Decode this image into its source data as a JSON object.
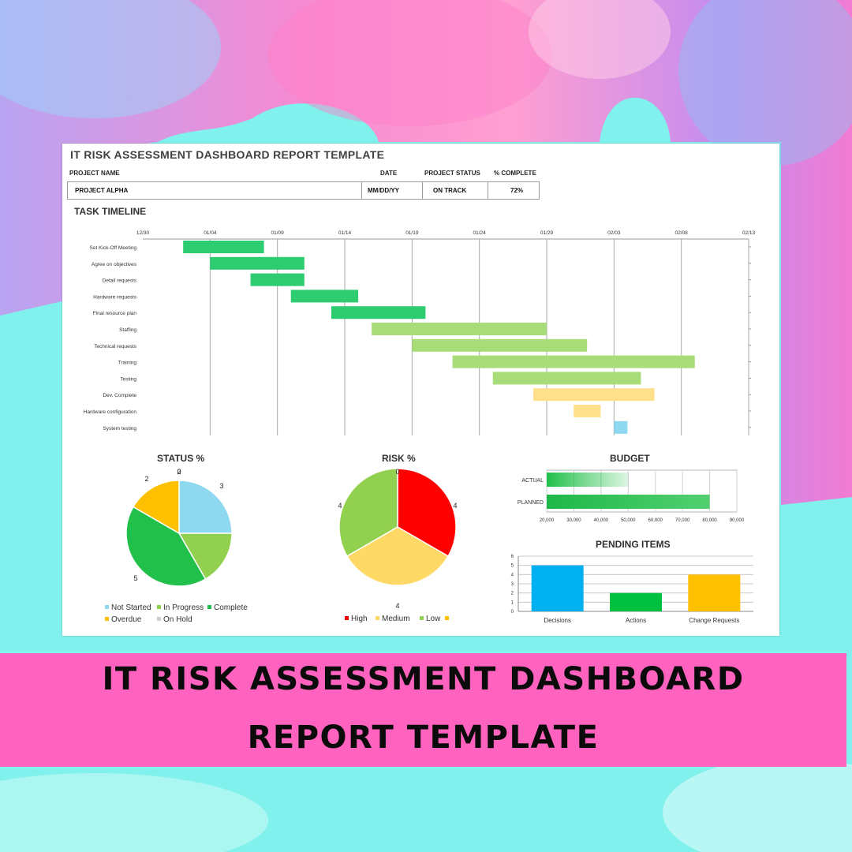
{
  "colors": {
    "banner": "#ff63bf",
    "background_pink": "#f07ad8",
    "background_aqua": "#7ff0ec",
    "dark_green": "#2ecc71",
    "light_green": "#a8dc78",
    "yellow": "#ffe08a",
    "light_blue": "#8ed8f0",
    "red": "#ff0000",
    "orange": "#ffc000",
    "bright_green": "#21c04a",
    "blue": "#00b0f0"
  },
  "document": {
    "title": "IT RISK ASSESSMENT DASHBOARD REPORT TEMPLATE",
    "project_name_label": "PROJECT NAME",
    "date_label": "DATE",
    "project_status_label": "PROJECT STATUS",
    "complete_label": "% COMPLETE",
    "project_name": "PROJECT ALPHA",
    "date": "MM/DD/YY",
    "project_status": "ON TRACK",
    "complete": "72%",
    "task_timeline_title": "TASK TIMELINE",
    "status_title": "STATUS %",
    "risk_title": "RISK %",
    "budget_title": "BUDGET",
    "pending_title": "PENDING ITEMS"
  },
  "banner": {
    "line1": "IT RISK ASSESSMENT DASHBOARD",
    "line2": "REPORT TEMPLATE"
  },
  "chart_data": [
    {
      "type": "gantt",
      "title": "TASK TIMELINE",
      "x_ticks": [
        "12/30",
        "01/04",
        "01/09",
        "01/14",
        "01/19",
        "01/24",
        "01/29",
        "02/03",
        "02/08",
        "02/13"
      ],
      "xlim": [
        "12/30",
        "02/13"
      ],
      "tasks": [
        {
          "label": "Set Kick-Off Meeting",
          "start": "01/02",
          "end": "01/08",
          "color": "#2ecc71"
        },
        {
          "label": "Agree on objectives",
          "start": "01/04",
          "end": "01/11",
          "color": "#2ecc71"
        },
        {
          "label": "Detail requests",
          "start": "01/07",
          "end": "01/11",
          "color": "#2ecc71"
        },
        {
          "label": "Hardware requests",
          "start": "01/10",
          "end": "01/15",
          "color": "#2ecc71"
        },
        {
          "label": "Final resource plan",
          "start": "01/13",
          "end": "01/20",
          "color": "#2ecc71"
        },
        {
          "label": "Staffing",
          "start": "01/16",
          "end": "01/29",
          "color": "#a8dc78"
        },
        {
          "label": "Technical requests",
          "start": "01/19",
          "end": "02/01",
          "color": "#a8dc78"
        },
        {
          "label": "Training",
          "start": "01/22",
          "end": "02/09",
          "color": "#a8dc78"
        },
        {
          "label": "Testing",
          "start": "01/25",
          "end": "02/05",
          "color": "#a8dc78"
        },
        {
          "label": "Dev. Complete",
          "start": "01/28",
          "end": "02/06",
          "color": "#ffe08a"
        },
        {
          "label": "Hardware configuration",
          "start": "01/31",
          "end": "02/02",
          "color": "#ffe08a"
        },
        {
          "label": "System testing",
          "start": "02/03",
          "end": "02/04",
          "color": "#8ed8f0"
        }
      ]
    },
    {
      "type": "pie",
      "title": "STATUS %",
      "categories": [
        "Not Started",
        "In Progress",
        "Complete",
        "Overdue",
        "On Hold"
      ],
      "values": [
        3,
        2,
        5,
        2,
        0
      ],
      "colors": [
        "#8ed8f0",
        "#92d050",
        "#21c04a",
        "#ffc000",
        "#cfcfcf"
      ],
      "legend_placement": "bottom"
    },
    {
      "type": "pie",
      "title": "RISK %",
      "categories": [
        "High",
        "Medium",
        "Low",
        ""
      ],
      "values": [
        4,
        4,
        4,
        0
      ],
      "colors": [
        "#ff0000",
        "#ffd966",
        "#92d050",
        "#ffc000"
      ],
      "legend_placement": "bottom"
    },
    {
      "type": "bar",
      "orientation": "horizontal",
      "title": "BUDGET",
      "categories": [
        "ACTUAL",
        "PLANNED"
      ],
      "values": [
        50000,
        80000
      ],
      "xlim": [
        20000,
        90000
      ],
      "x_ticks": [
        "20,000",
        "30,000",
        "40,000",
        "50,000",
        "60,000",
        "70,000",
        "80,000",
        "90,000"
      ],
      "grid": true
    },
    {
      "type": "bar",
      "title": "PENDING ITEMS",
      "categories": [
        "Decisions",
        "Actions",
        "Change Requests"
      ],
      "values": [
        5,
        2,
        4
      ],
      "colors": [
        "#00b0f0",
        "#00c040",
        "#ffc000"
      ],
      "ylim": [
        0,
        6
      ],
      "y_ticks": [
        "0",
        "1",
        "2",
        "3",
        "4",
        "5",
        "6"
      ],
      "grid": true
    }
  ]
}
